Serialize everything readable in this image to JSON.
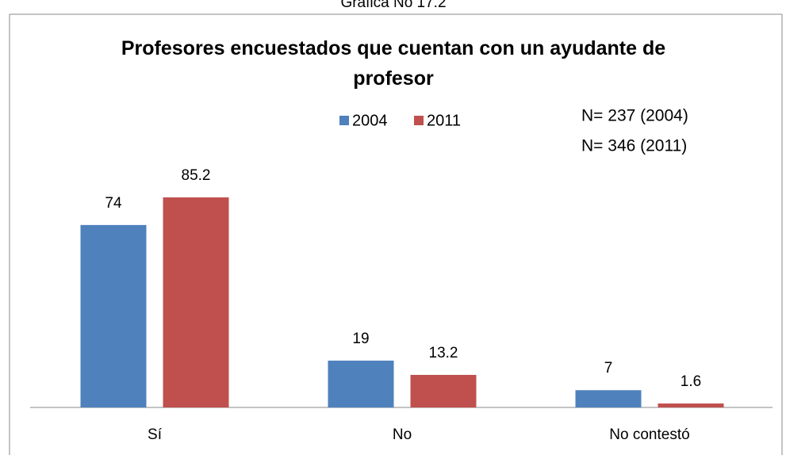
{
  "caption": "Gráfica No 17.2",
  "chart_data": {
    "type": "bar",
    "title": "Profesores encuestados que cuentan con un ayudante de profesor",
    "annotations": [
      "N= 237 (2004)",
      "N= 346 (2011)"
    ],
    "categories": [
      "Sí",
      "No",
      "No contestó"
    ],
    "series": [
      {
        "name": "2004",
        "color": "#4f81bd",
        "values": [
          74,
          19,
          7
        ]
      },
      {
        "name": "2011",
        "color": "#c0504d",
        "values": [
          85.2,
          13.2,
          1.6
        ]
      }
    ],
    "legend": "top"
  }
}
